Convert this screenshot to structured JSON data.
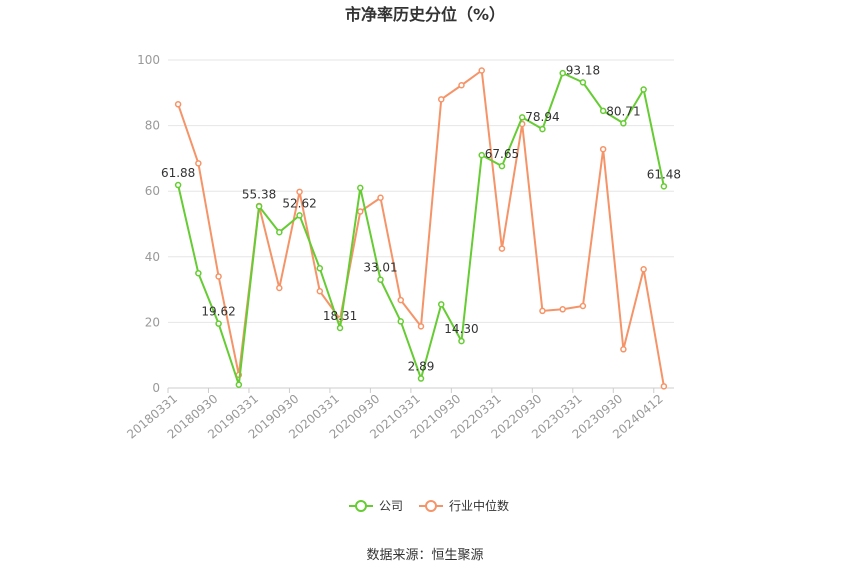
{
  "chart_data": {
    "type": "line",
    "title": "市净率历史分位（%）",
    "source": "数据来源：恒生聚源",
    "ylim": [
      0,
      100
    ],
    "yticks": [
      0,
      20,
      40,
      60,
      80,
      100
    ],
    "xtick_labels": [
      "20180331",
      "20180930",
      "20190331",
      "20190930",
      "20200331",
      "20200930",
      "20210331",
      "20210930",
      "20220331",
      "20220930",
      "20230331",
      "20230930",
      "20240412"
    ],
    "x_count": 25,
    "grid": "horizontal",
    "legend_position": "bottom-center",
    "series": [
      {
        "name": "公司",
        "color": "#66cc33",
        "values": [
          61.88,
          35.0,
          19.62,
          1.0,
          55.38,
          47.5,
          52.62,
          36.5,
          18.31,
          61.0,
          33.01,
          20.3,
          2.89,
          25.5,
          14.3,
          71.0,
          67.65,
          82.5,
          78.94,
          96.0,
          93.18,
          84.5,
          80.71,
          91.0,
          61.48
        ],
        "labels": {
          "0": "61.88",
          "2": "19.62",
          "4": "55.38",
          "6": "52.62",
          "8": "18.31",
          "10": "33.01",
          "12": "2.89",
          "14": "14.30",
          "16": "67.65",
          "18": "78.94",
          "20": "93.18",
          "22": "80.71",
          "24": "61.48"
        }
      },
      {
        "name": "行业中位数",
        "color": "#f59468",
        "values": [
          86.5,
          68.5,
          34.0,
          4.0,
          55.5,
          30.5,
          59.8,
          29.5,
          21.0,
          53.8,
          58.0,
          26.8,
          18.8,
          88.0,
          92.3,
          96.8,
          42.5,
          80.5,
          23.5,
          24.0,
          25.0,
          72.8,
          11.8,
          36.2,
          0.5
        ]
      }
    ]
  }
}
